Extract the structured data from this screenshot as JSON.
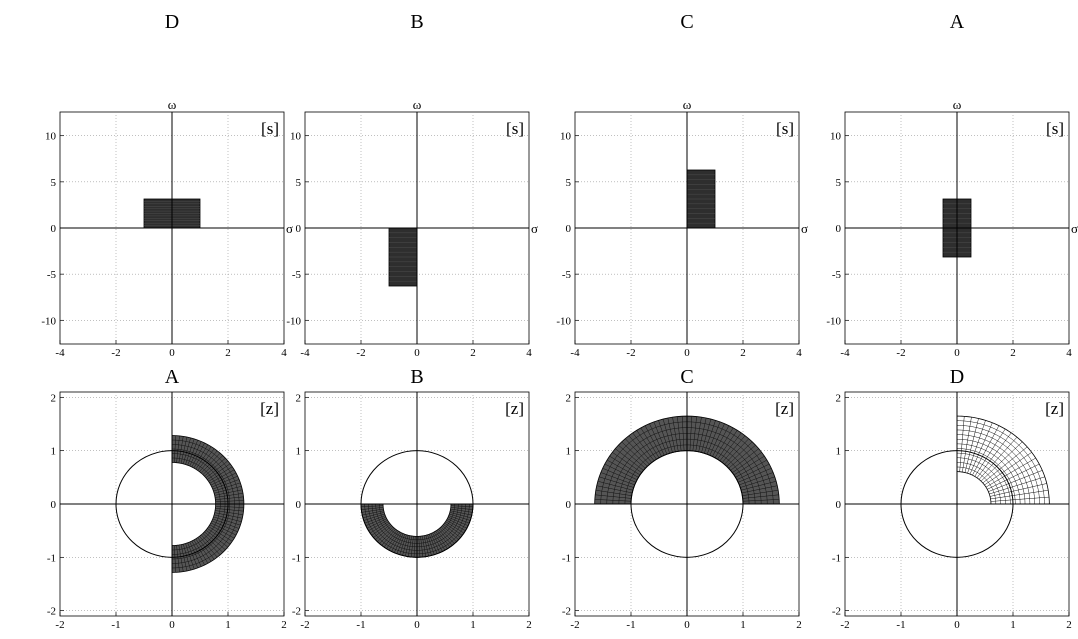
{
  "chart_data": [
    {
      "type": "region",
      "title": "D",
      "domain_label": "[s]",
      "xlabel": "σ",
      "ylabel": "ω",
      "xlim": [
        -4,
        4
      ],
      "ylim": [
        -12.566,
        12.566
      ],
      "xticks": [
        "-4",
        "-2",
        "0",
        "2",
        "4"
      ],
      "yticks": [
        "-10",
        "-5",
        "0",
        "5",
        "10"
      ],
      "grid": true,
      "region": {
        "shape": "rect",
        "sigma": [
          -1,
          1
        ],
        "omega": [
          0,
          3.14159
        ]
      }
    },
    {
      "type": "region",
      "title": "B",
      "domain_label": "[s]",
      "xlabel": "σ",
      "ylabel": "ω",
      "xlim": [
        -4,
        4
      ],
      "ylim": [
        -12.566,
        12.566
      ],
      "xticks": [
        "-4",
        "-2",
        "0",
        "2",
        "4"
      ],
      "yticks": [
        "-10",
        "-5",
        "0",
        "5",
        "10"
      ],
      "grid": true,
      "region": {
        "shape": "rect",
        "sigma": [
          -1,
          0
        ],
        "omega": [
          -6.28319,
          0
        ]
      }
    },
    {
      "type": "region",
      "title": "C",
      "domain_label": "[s]",
      "xlabel": "σ",
      "ylabel": "ω",
      "xlim": [
        -4,
        4
      ],
      "ylim": [
        -12.566,
        12.566
      ],
      "xticks": [
        "-4",
        "-2",
        "0",
        "2",
        "4"
      ],
      "yticks": [
        "-10",
        "-5",
        "0",
        "5",
        "10"
      ],
      "grid": true,
      "region": {
        "shape": "rect",
        "sigma": [
          0,
          1
        ],
        "omega": [
          0,
          6.28319
        ]
      }
    },
    {
      "type": "region",
      "title": "A",
      "domain_label": "[s]",
      "xlabel": "σ",
      "ylabel": "ω",
      "xlim": [
        -4,
        4
      ],
      "ylim": [
        -12.566,
        12.566
      ],
      "xticks": [
        "-4",
        "-2",
        "0",
        "2",
        "4"
      ],
      "yticks": [
        "-10",
        "-5",
        "0",
        "5",
        "10"
      ],
      "grid": true,
      "region": {
        "shape": "rect",
        "sigma": [
          -0.5,
          0.5
        ],
        "omega": [
          -3.14159,
          3.14159
        ]
      }
    },
    {
      "type": "region",
      "title": "A",
      "domain_label": "[z]",
      "xlim": [
        -2,
        2
      ],
      "ylim": [
        -2.1,
        2.1
      ],
      "xticks": [
        "-2",
        "-1",
        "0",
        "1",
        "2"
      ],
      "yticks": [
        "-2",
        "-1",
        "0",
        "1",
        "2"
      ],
      "grid": true,
      "unit_circle": true,
      "region": {
        "shape": "annular_sector",
        "r": [
          0.7788,
          1.284
        ],
        "theta_deg": [
          -90,
          90
        ]
      }
    },
    {
      "type": "region",
      "title": "B",
      "domain_label": "[z]",
      "xlim": [
        -2,
        2
      ],
      "ylim": [
        -2.1,
        2.1
      ],
      "xticks": [
        "-2",
        "-1",
        "0",
        "1",
        "2"
      ],
      "yticks": [
        "-2",
        "-1",
        "0",
        "1",
        "2"
      ],
      "grid": true,
      "unit_circle": true,
      "region": {
        "shape": "annular_sector",
        "r": [
          0.6065,
          1.0
        ],
        "theta_deg": [
          180,
          360
        ]
      }
    },
    {
      "type": "region",
      "title": "C",
      "domain_label": "[z]",
      "xlim": [
        -2,
        2
      ],
      "ylim": [
        -2.1,
        2.1
      ],
      "xticks": [
        "-2",
        "-1",
        "0",
        "1",
        "2"
      ],
      "yticks": [
        "-2",
        "-1",
        "0",
        "1",
        "2"
      ],
      "grid": true,
      "unit_circle": true,
      "region": {
        "shape": "annular_sector",
        "r": [
          1.0,
          1.6487
        ],
        "theta_deg": [
          0,
          180
        ]
      }
    },
    {
      "type": "region",
      "title": "D",
      "domain_label": "[z]",
      "xlim": [
        -2,
        2
      ],
      "ylim": [
        -2.1,
        2.1
      ],
      "xticks": [
        "-2",
        "-1",
        "0",
        "1",
        "2"
      ],
      "yticks": [
        "-2",
        "-1",
        "0",
        "1",
        "2"
      ],
      "grid": true,
      "unit_circle": true,
      "region": {
        "shape": "annular_sector",
        "r": [
          0.6065,
          1.6487
        ],
        "theta_deg": [
          0,
          90
        ]
      }
    }
  ]
}
